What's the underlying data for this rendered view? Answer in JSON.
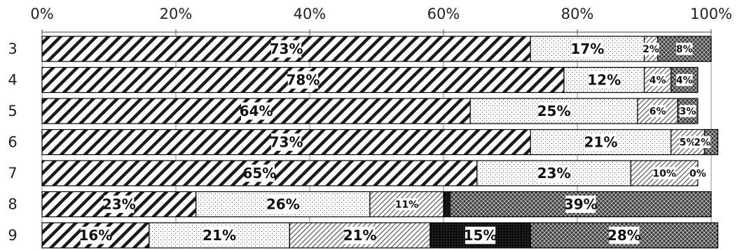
{
  "chart_data": {
    "type": "bar",
    "orientation": "horizontal",
    "stacked": "percent",
    "xlim": [
      0,
      100
    ],
    "x_ticks": [
      "0%",
      "20%",
      "40%",
      "60%",
      "80%",
      "100%"
    ],
    "categories": [
      "3",
      "4",
      "5",
      "6",
      "7",
      "8",
      "9"
    ],
    "series": [
      {
        "pattern": "wide-diagonal-hatch",
        "values": [
          73,
          78,
          64,
          73,
          65,
          23,
          16
        ],
        "labels": [
          "73%",
          "78%",
          "64%",
          "73%",
          "65%",
          "23%",
          "16%"
        ]
      },
      {
        "pattern": "fine-dots",
        "values": [
          17,
          12,
          25,
          21,
          23,
          26,
          21
        ],
        "labels": [
          "17%",
          "12%",
          "25%",
          "21%",
          "23%",
          "26%",
          "21%"
        ]
      },
      {
        "pattern": "light-diagonal-hatch",
        "values": [
          2,
          4,
          6,
          5,
          10,
          11,
          21
        ],
        "labels": [
          "2%",
          "4%",
          "6%",
          "5%",
          "10%",
          "11%",
          "21%"
        ]
      },
      {
        "pattern": "solid-black",
        "values": [
          0,
          0,
          0,
          0,
          0,
          1,
          15
        ],
        "labels": [
          "",
          "",
          "",
          "",
          "",
          "",
          "15%"
        ]
      },
      {
        "pattern": "crosshatch-dark",
        "values": [
          8,
          4,
          3,
          2,
          0,
          39,
          28
        ],
        "labels": [
          "8%",
          "4%",
          "3%",
          "2%",
          "0%",
          "39%",
          "28%"
        ]
      }
    ],
    "grid": true,
    "legend": "none"
  }
}
